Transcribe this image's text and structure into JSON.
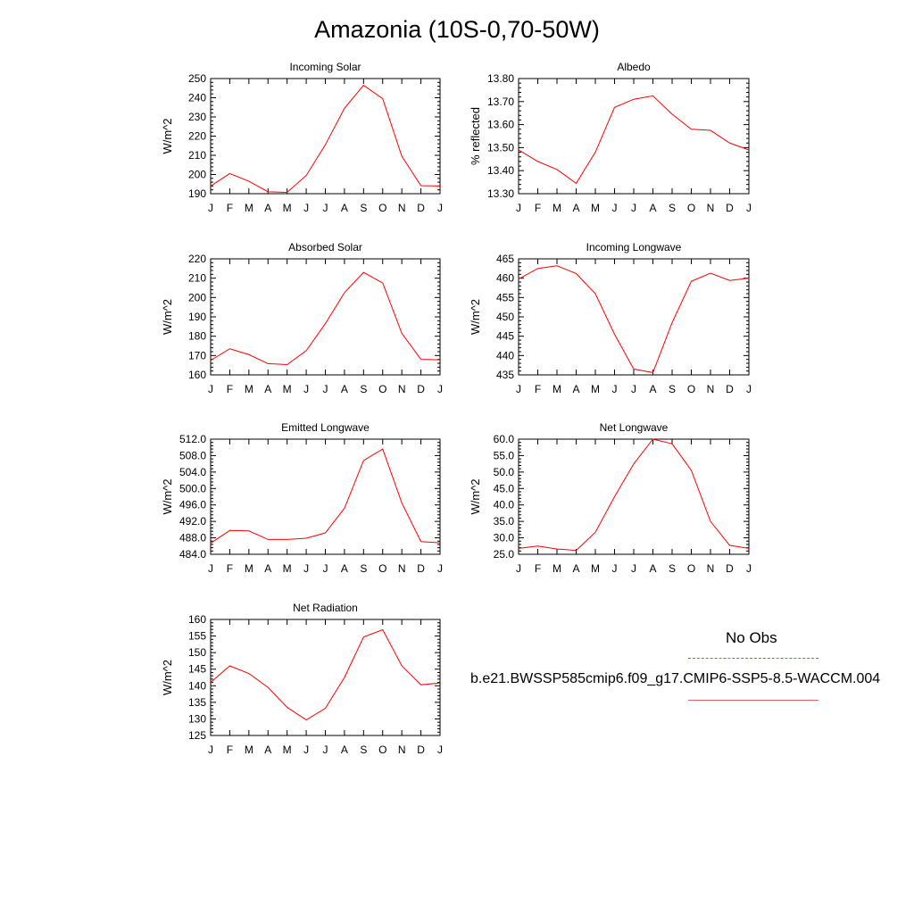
{
  "page": {
    "title": "Amazonia (10S-0,70-50W)"
  },
  "legend": {
    "obs_label": "No Obs",
    "obs_color": "#6a6ae0",
    "model_label": "b.e21.BWSSP585cmip6.f09_g17.CMIP6-SSP5-8.5-WACCM.004",
    "model_color": "#ff0000"
  },
  "chart_data": [
    {
      "type": "line",
      "title": "Incoming Solar",
      "ylabel": "W/m^2",
      "categories": [
        "J",
        "F",
        "M",
        "A",
        "M",
        "J",
        "J",
        "A",
        "S",
        "O",
        "N",
        "D",
        "J"
      ],
      "ylim": [
        190,
        250
      ],
      "yticks": [
        "190",
        "200",
        "210",
        "220",
        "230",
        "240",
        "250"
      ],
      "series": [
        {
          "color": "#ff0000",
          "values": [
            194,
            200.5,
            196.5,
            191,
            190.7,
            199.5,
            215.5,
            234.5,
            246.5,
            239.5,
            209.5,
            194.2,
            194
          ]
        }
      ]
    },
    {
      "type": "line",
      "title": "Albedo",
      "ylabel": "% reflected",
      "categories": [
        "J",
        "F",
        "M",
        "A",
        "M",
        "J",
        "J",
        "A",
        "S",
        "O",
        "N",
        "D",
        "J"
      ],
      "ylim": [
        13.3,
        13.8
      ],
      "yticks": [
        "13.30",
        "13.40",
        "13.50",
        "13.60",
        "13.70",
        "13.80"
      ],
      "series": [
        {
          "color": "#ff0000",
          "values": [
            13.49,
            13.44,
            13.405,
            13.345,
            13.48,
            13.675,
            13.71,
            13.725,
            13.645,
            13.58,
            13.575,
            13.52,
            13.49
          ]
        }
      ]
    },
    {
      "type": "line",
      "title": "Absorbed Solar",
      "ylabel": "W/m^2",
      "categories": [
        "J",
        "F",
        "M",
        "A",
        "M",
        "J",
        "J",
        "A",
        "S",
        "O",
        "N",
        "D",
        "J"
      ],
      "ylim": [
        160,
        220
      ],
      "yticks": [
        "160",
        "170",
        "180",
        "190",
        "200",
        "210",
        "220"
      ],
      "series": [
        {
          "color": "#ff0000",
          "values": [
            167.5,
            173.5,
            170.5,
            165.8,
            165.3,
            172.5,
            186.5,
            202.5,
            213,
            207.5,
            181.5,
            168,
            167.8
          ]
        }
      ]
    },
    {
      "type": "line",
      "title": "Incoming Longwave",
      "ylabel": "W/m^2",
      "categories": [
        "J",
        "F",
        "M",
        "A",
        "M",
        "J",
        "J",
        "A",
        "S",
        "O",
        "N",
        "D",
        "J"
      ],
      "ylim": [
        435,
        465
      ],
      "yticks": [
        "435",
        "440",
        "445",
        "450",
        "455",
        "460",
        "465"
      ],
      "series": [
        {
          "color": "#ff0000",
          "values": [
            459.8,
            462.5,
            463.2,
            461.2,
            456,
            445.5,
            436.5,
            435.6,
            448.5,
            459.2,
            461.3,
            459.4,
            460
          ]
        }
      ]
    },
    {
      "type": "line",
      "title": "Emitted Longwave",
      "ylabel": "W/m^2",
      "categories": [
        "J",
        "F",
        "M",
        "A",
        "M",
        "J",
        "J",
        "A",
        "S",
        "O",
        "N",
        "D",
        "J"
      ],
      "ylim": [
        484,
        512
      ],
      "yticks": [
        "484.0",
        "488.0",
        "492.0",
        "496.0",
        "500.0",
        "504.0",
        "508.0",
        "512.0"
      ],
      "series": [
        {
          "color": "#ff0000",
          "values": [
            486.7,
            489.8,
            489.7,
            487.6,
            487.6,
            487.9,
            489.2,
            495.2,
            506.8,
            509.6,
            496.5,
            487.1,
            486.8
          ]
        }
      ]
    },
    {
      "type": "line",
      "title": "Net Longwave",
      "ylabel": "W/m^2",
      "categories": [
        "J",
        "F",
        "M",
        "A",
        "M",
        "J",
        "J",
        "A",
        "S",
        "O",
        "N",
        "D",
        "J"
      ],
      "ylim": [
        25,
        60
      ],
      "yticks": [
        "25.0",
        "30.0",
        "35.0",
        "40.0",
        "45.0",
        "50.0",
        "55.0",
        "60.0"
      ],
      "series": [
        {
          "color": "#ff0000",
          "values": [
            26.8,
            27.5,
            26.6,
            26.2,
            31.7,
            42.5,
            52.5,
            60,
            58.6,
            50.5,
            35,
            27.7,
            26.8
          ]
        }
      ]
    },
    {
      "type": "line",
      "title": "Net Radiation",
      "ylabel": "W/m^2",
      "categories": [
        "J",
        "F",
        "M",
        "A",
        "M",
        "J",
        "J",
        "A",
        "S",
        "O",
        "N",
        "D",
        "J"
      ],
      "ylim": [
        125,
        160
      ],
      "yticks": [
        "125",
        "130",
        "135",
        "140",
        "145",
        "150",
        "155",
        "160"
      ],
      "series": [
        {
          "color": "#ff0000",
          "values": [
            141,
            146,
            143.7,
            139.5,
            133.5,
            129.7,
            133.2,
            142.5,
            154.7,
            156.9,
            146,
            140.3,
            140.8
          ]
        }
      ]
    }
  ]
}
